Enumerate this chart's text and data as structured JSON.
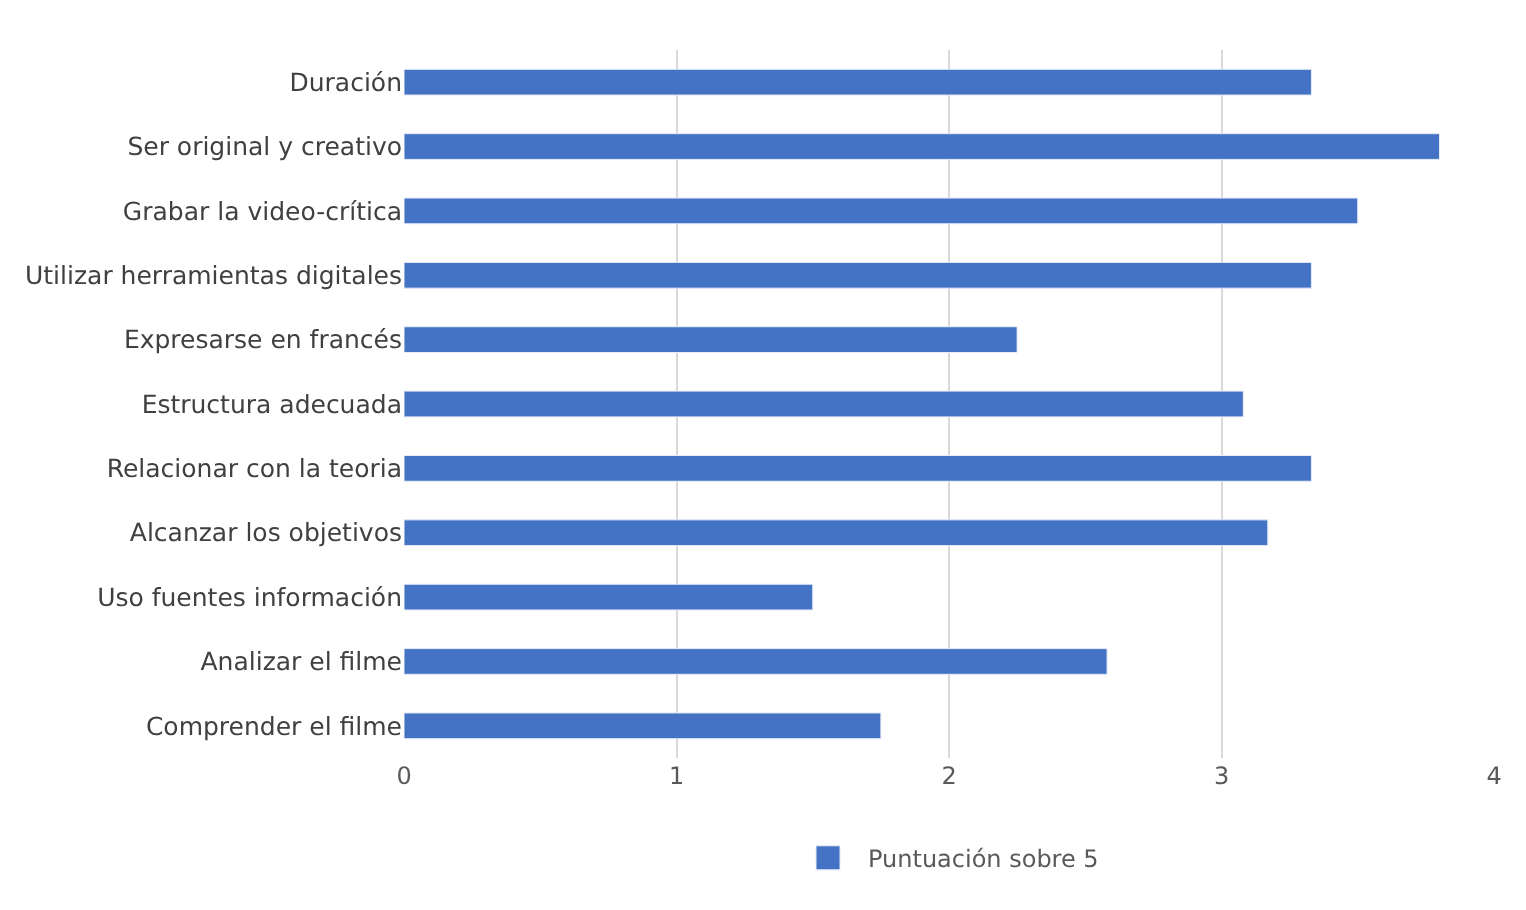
{
  "chart_data": {
    "type": "bar",
    "orientation": "horizontal",
    "categories": [
      "Duración",
      "Ser original y creativo",
      "Grabar la video-crítica",
      "Utilizar herramientas digitales",
      "Expresarse en francés",
      "Estructura adecuada",
      "Relacionar con la teoria",
      "Alcanzar los objetivos",
      "Uso fuentes información",
      "Analizar el filme",
      "Comprender el filme"
    ],
    "series": [
      {
        "name": "Puntuación sobre 5",
        "color": "#4472c4",
        "values": [
          3.33,
          3.8,
          3.5,
          3.33,
          2.25,
          3.08,
          3.33,
          3.17,
          1.5,
          2.58,
          1.75
        ]
      }
    ],
    "xlim": [
      0,
      4
    ],
    "xticks": [
      0,
      1,
      2,
      3,
      4
    ],
    "grid": "x",
    "legend": "bottom"
  }
}
